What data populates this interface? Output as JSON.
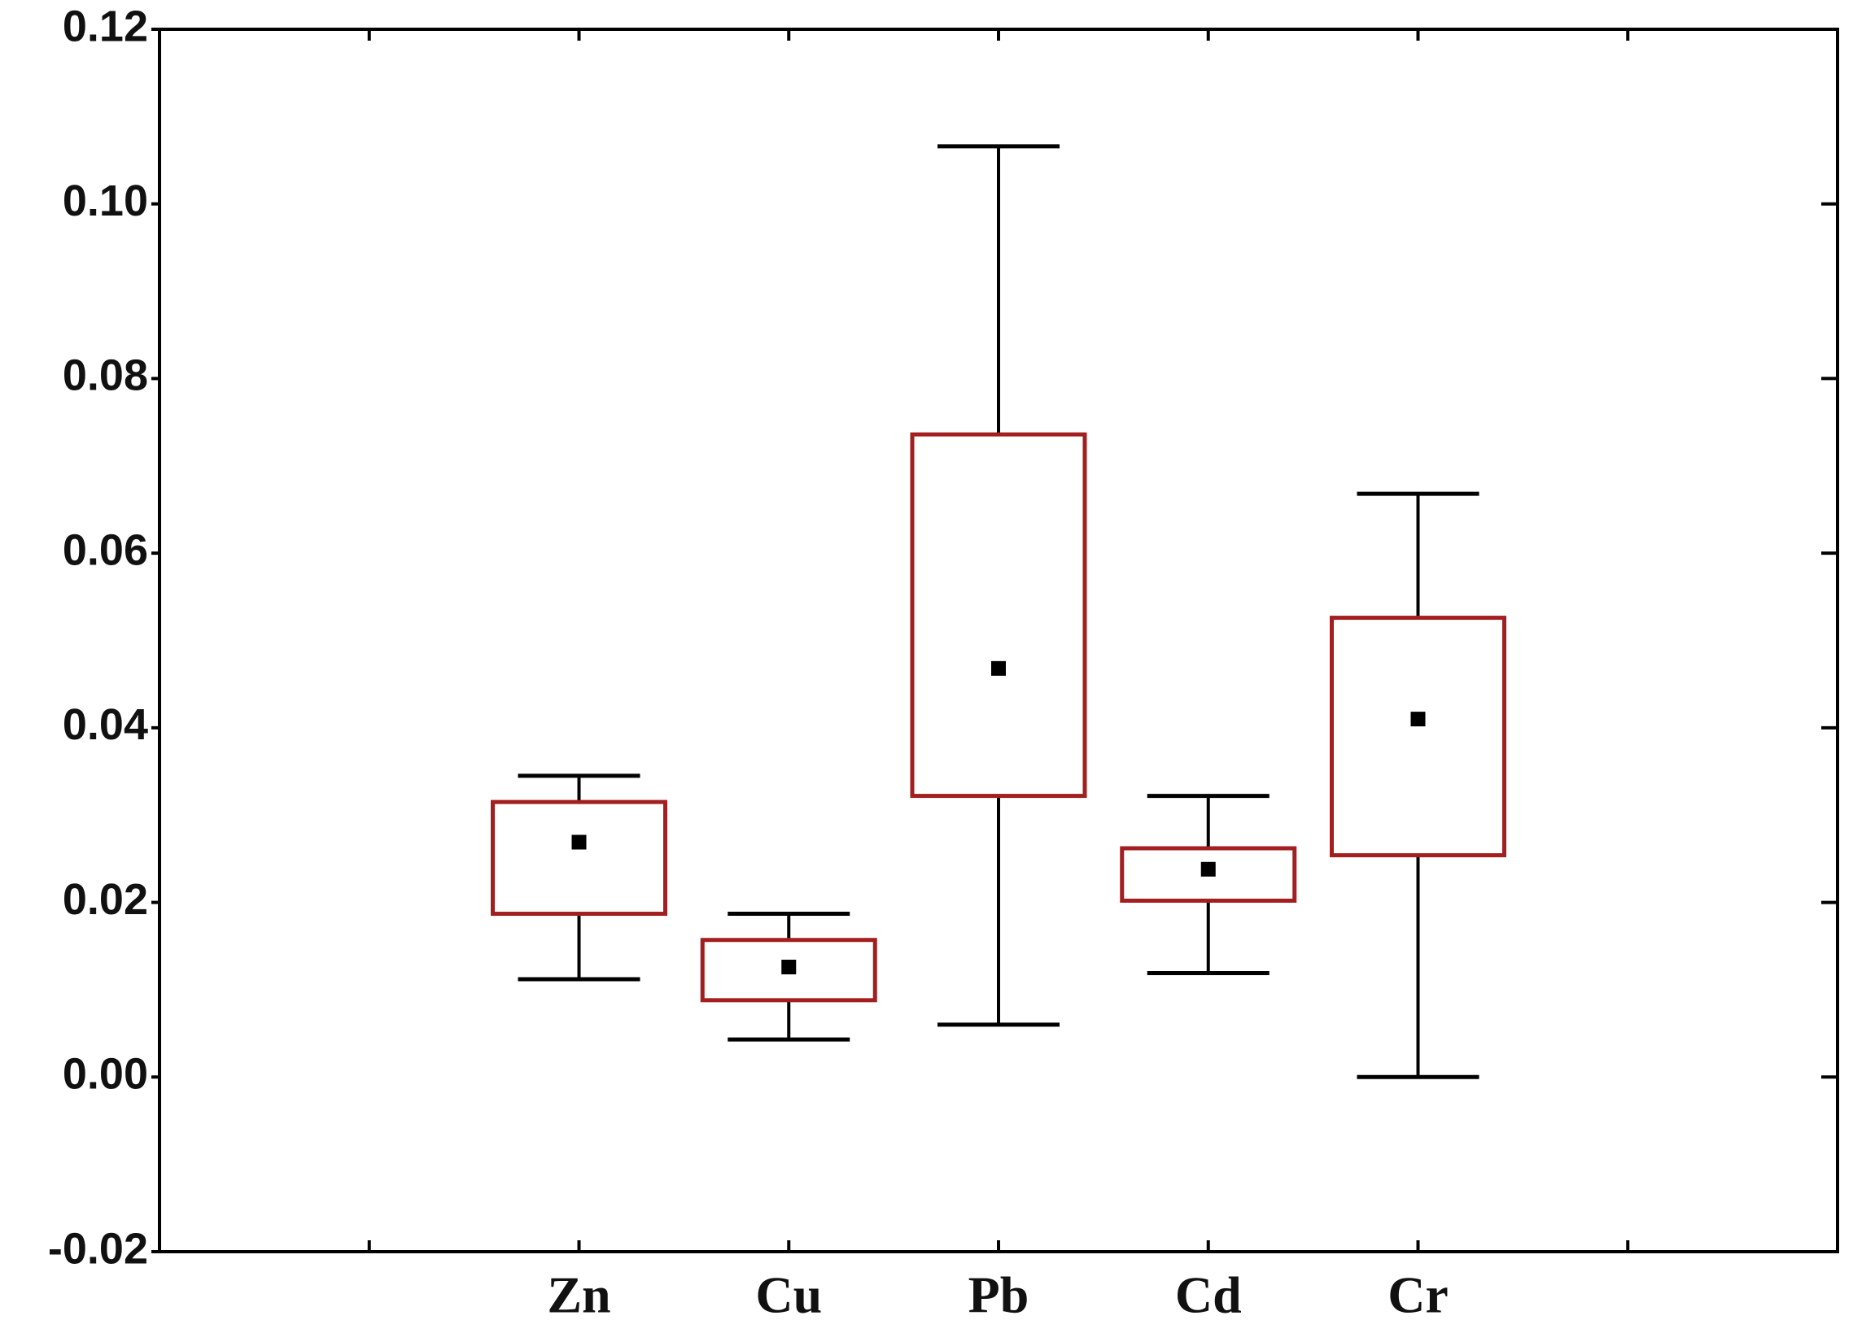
{
  "chart_data": {
    "type": "box",
    "categories": [
      null,
      "Zn",
      "Cu",
      "Pb",
      "Cd",
      "Cr",
      null
    ],
    "whisker_high": [
      null,
      0.0345,
      0.0187,
      0.1066,
      0.0322,
      0.0668,
      null
    ],
    "q3": [
      null,
      0.0315,
      0.0157,
      0.0736,
      0.0262,
      0.0526,
      null
    ],
    "q1": [
      null,
      0.0187,
      0.0088,
      0.0322,
      0.0202,
      0.0254,
      null
    ],
    "whisker_low": [
      null,
      0.0112,
      0.0043,
      0.006,
      0.0119,
      0,
      null
    ],
    "mean": [
      null,
      0.0269,
      0.0126,
      0.0468,
      0.0238,
      0.041,
      null
    ],
    "box_color": "#a31f1f",
    "whisker_color": "#000000",
    "mean_color": "#000000",
    "ylim": [
      -0.02,
      0.12
    ],
    "yticks": [
      -0.02,
      {
        "value": 0,
        "label": "0.00"
      },
      0.02,
      0.04,
      0.06,
      0.08,
      {
        "value": 0.1,
        "label": "0.10"
      },
      0.12
    ],
    "grid": false
  }
}
